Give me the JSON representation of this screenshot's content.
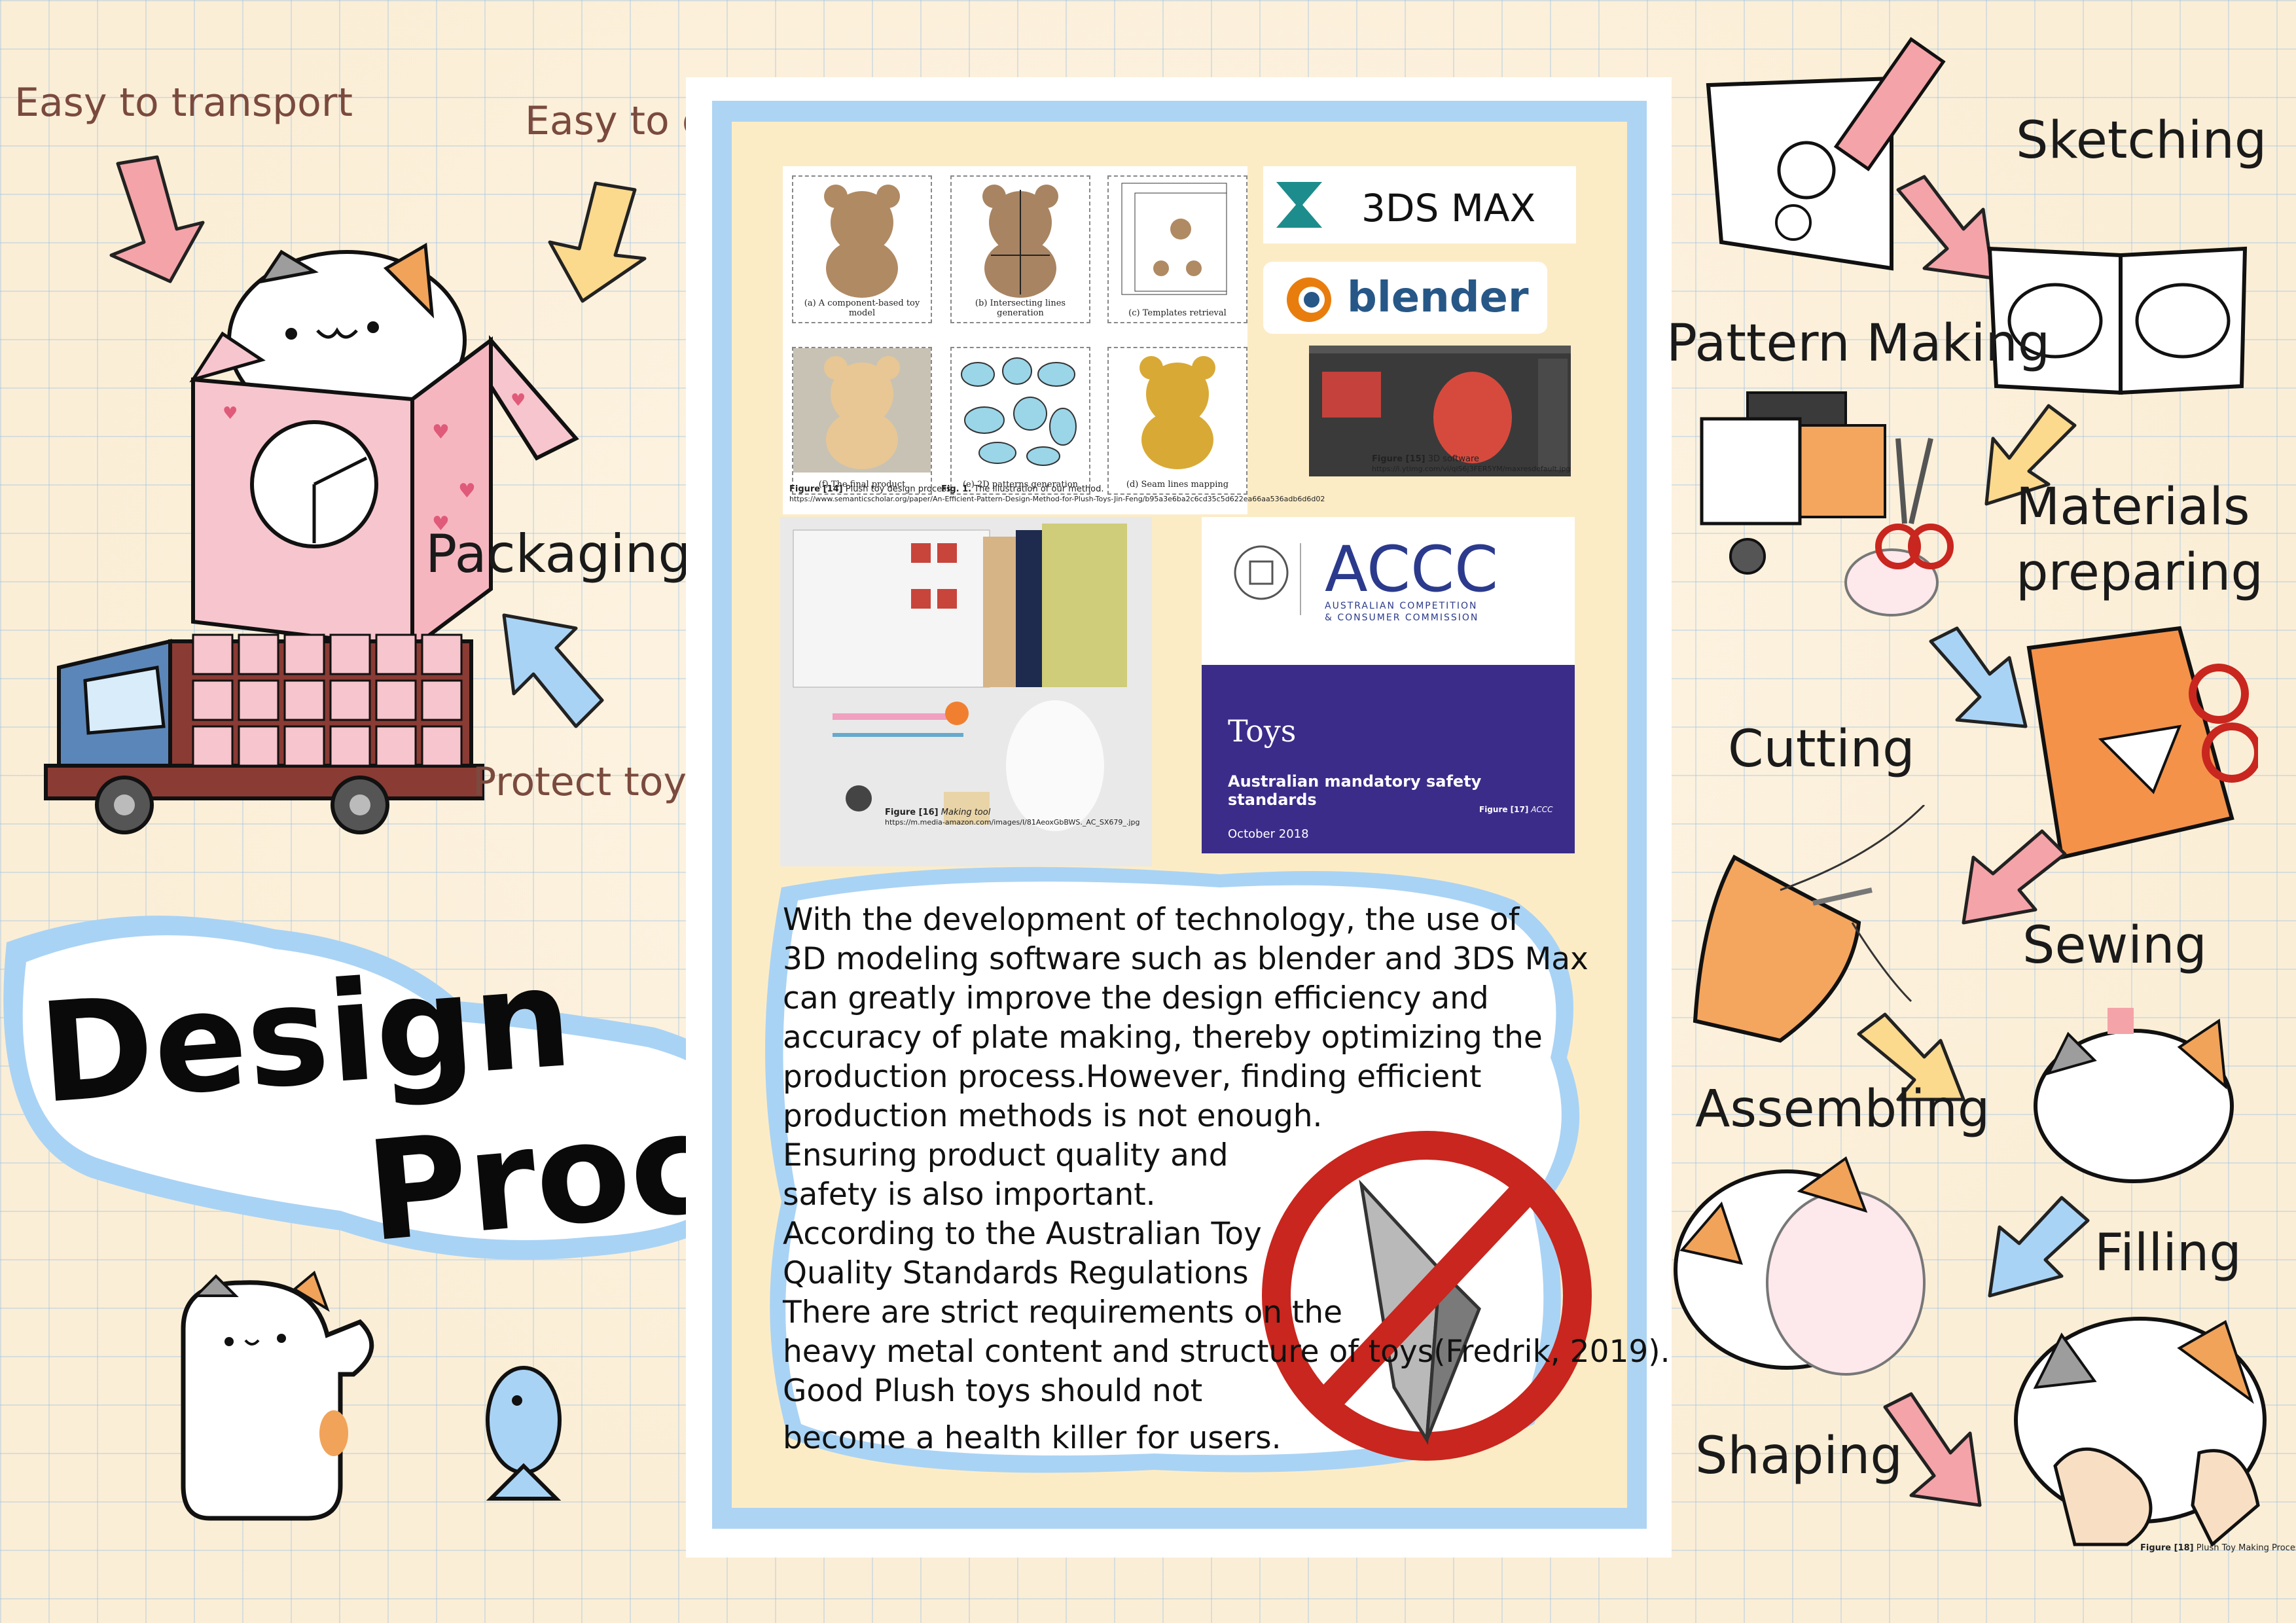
{
  "left": {
    "easy_transport": "Easy to transport",
    "easy_display": "Easy to display",
    "packaging": "Packaging",
    "protect_toys": "Protect toys",
    "title_line1": "Design",
    "title_line2": "Process"
  },
  "figures": {
    "teddy_panels": [
      "(a) A component-based toy model",
      "(b) Intersecting lines generation",
      "(c) Templates retrieval",
      "(f) The final product",
      "(e) 2D patterns generation",
      "(d) Seam lines mapping"
    ],
    "fig14_label": "Figure [14]",
    "fig14_text": "Plush toy design process",
    "fig1_label": "Fig. 1.",
    "fig1_text": "The illustration of our method.",
    "fig14_url": "https://www.semanticscholar.org/paper/An-Efficient-Pattern-Design-Method-for-Plush-Toys-Jin-Feng/b95a3e6ba2c6cd35c5d622ea66aa536adb6d6d02",
    "max_logo": "3DS MAX",
    "blender_logo": "blender",
    "fig15_label": "Figure [15]",
    "fig15_text": "3D software",
    "fig15_url": "https://i.ytimg.com/vi/qiS6j3FER5YM/maxresdefault.jpg",
    "fig16_label": "Figure [16]",
    "fig16_text": "Making tool",
    "fig16_url": "https://m.media-amazon.com/images/I/81AeoxGbBWS._AC_SX679_.jpg",
    "accc_logo": "ACCC",
    "accc_sub1": "AUSTRALIAN COMPETITION",
    "accc_sub2": "& CONSUMER COMMISSION",
    "accc_title": "Toys",
    "accc_subtitle": "Australian mandatory safety standards",
    "fig17_label": "Figure [17]",
    "fig17_text": "ACCC",
    "accc_date": "October 2018"
  },
  "body_text": [
    "With the development of technology, the use of",
    "3D modeling software such as blender and 3DS Max",
    "can greatly improve the design efficiency and",
    "accuracy of plate making, thereby optimizing the",
    "production process.However, finding efficient",
    "production methods is not enough.",
    "Ensuring product quality and",
    "safety is also important.",
    "According to the Australian Toy",
    "Quality Standards Regulations",
    "There are strict requirements on the",
    "heavy metal content and structure of toys(Fredrik, 2019).",
    "Good Plush toys should not",
    "become a health killer for users."
  ],
  "steps": {
    "sketching": "Sketching",
    "pattern_making": "Pattern Making",
    "materials_1": "Materials",
    "materials_2": "preparing",
    "cutting": "Cutting",
    "sewing": "Sewing",
    "assembling": "Assembling",
    "filling": "Filling",
    "shaping": "Shaping"
  },
  "fig18_label": "Figure [18]",
  "fig18_text": "Plush Toy Making Process",
  "colors": {
    "arrow_pink": "#f4a3a8",
    "arrow_yellow": "#fbd98d",
    "arrow_blue": "#a9d3f5",
    "accc_purple": "#3b2c8a",
    "no_sign_red": "#c8261e"
  }
}
